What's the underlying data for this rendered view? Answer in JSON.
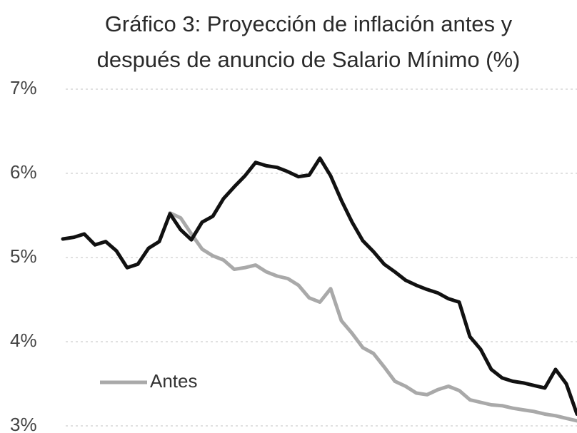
{
  "chart_data": {
    "type": "line",
    "title": [
      "Gráfico 3: Proyección de inflación antes y",
      "después de anuncio de Salario Mínimo (%)"
    ],
    "ylim": [
      3,
      7
    ],
    "yticks": [
      {
        "value": 3,
        "label": "3%"
      },
      {
        "value": 4,
        "label": "4%"
      },
      {
        "value": 5,
        "label": "5%"
      },
      {
        "value": 6,
        "label": "6%"
      },
      {
        "value": 7,
        "label": "7%"
      }
    ],
    "grid": true,
    "legend": "lower left",
    "series": [
      {
        "color": "#111111",
        "values": [
          5.22,
          5.24,
          5.28,
          5.15,
          5.19,
          5.08,
          4.88,
          4.92,
          5.11,
          5.19,
          5.52,
          5.33,
          5.21,
          5.42,
          5.49,
          5.7,
          5.84,
          5.97,
          6.13,
          6.09,
          6.07,
          6.02,
          5.96,
          5.98,
          6.18,
          5.97,
          5.68,
          5.42,
          5.2,
          5.07,
          4.92,
          4.83,
          4.73,
          4.67,
          4.62,
          4.58,
          4.51,
          4.47,
          4.06,
          3.91,
          3.67,
          3.57,
          3.53,
          3.51,
          3.48,
          3.45,
          3.67,
          3.5,
          3.14
        ]
      },
      {
        "name": "Antes",
        "color": "#a9a9a9",
        "values": [
          null,
          null,
          null,
          null,
          null,
          null,
          null,
          null,
          null,
          null,
          5.53,
          5.47,
          5.28,
          5.1,
          5.02,
          4.97,
          4.86,
          4.88,
          4.91,
          4.83,
          4.78,
          4.75,
          4.67,
          4.52,
          4.47,
          4.63,
          4.25,
          4.1,
          3.93,
          3.86,
          3.7,
          3.53,
          3.47,
          3.39,
          3.37,
          3.43,
          3.47,
          3.42,
          3.31,
          3.28,
          3.25,
          3.24,
          3.21,
          3.19,
          3.17,
          3.14,
          3.12,
          3.09,
          3.06
        ]
      }
    ]
  }
}
